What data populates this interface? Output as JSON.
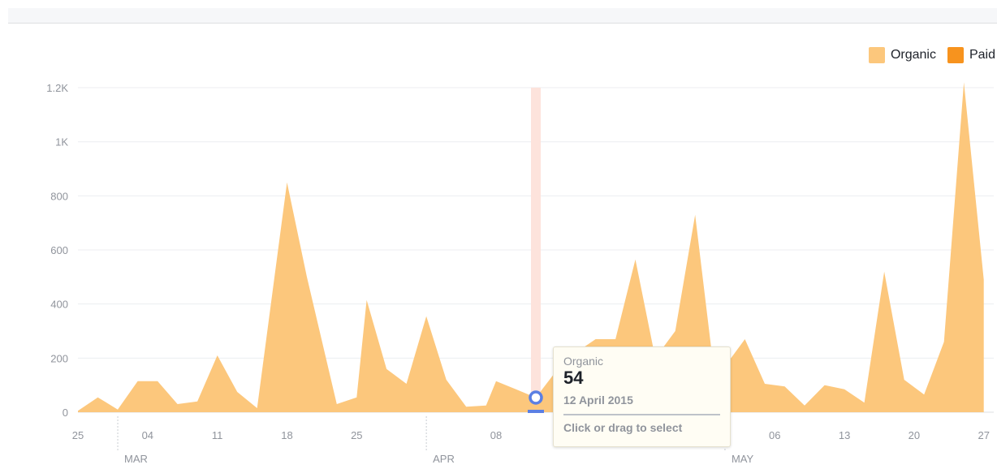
{
  "colors": {
    "organic": "#fcc77c",
    "paid": "#f7931e",
    "hover_band": "#fde3dc",
    "marker": "#5b7fe3",
    "grid": "#eceef1"
  },
  "legend": {
    "placement": "top-right",
    "items": [
      {
        "label": "Organic",
        "color": "#fcc77c"
      },
      {
        "label": "Paid",
        "color": "#f7931e"
      }
    ]
  },
  "chart_data": {
    "type": "area",
    "y_ticks": [
      {
        "value": 0,
        "label": "0"
      },
      {
        "value": 200,
        "label": "200"
      },
      {
        "value": 400,
        "label": "400"
      },
      {
        "value": 600,
        "label": "600"
      },
      {
        "value": 800,
        "label": "800"
      },
      {
        "value": 1000,
        "label": "1K"
      },
      {
        "value": 1200,
        "label": "1.2K"
      }
    ],
    "ylim": [
      0,
      1280
    ],
    "x_range": [
      "2015-02-25",
      "2015-05-28"
    ],
    "x_ticks": [
      {
        "date": "2015-02-25",
        "label": "25"
      },
      {
        "date": "2015-03-04",
        "label": "04"
      },
      {
        "date": "2015-03-11",
        "label": "11"
      },
      {
        "date": "2015-03-18",
        "label": "18"
      },
      {
        "date": "2015-03-25",
        "label": "25"
      },
      {
        "date": "2015-04-08",
        "label": "08"
      },
      {
        "date": "2015-05-06",
        "label": "06"
      },
      {
        "date": "2015-05-13",
        "label": "13"
      },
      {
        "date": "2015-05-20",
        "label": "20"
      },
      {
        "date": "2015-05-27",
        "label": "27"
      }
    ],
    "month_labels": [
      {
        "date": "2015-03-01",
        "label": "MAR"
      },
      {
        "date": "2015-04-01",
        "label": "APR"
      },
      {
        "date": "2015-05-01",
        "label": "MAY"
      }
    ],
    "grid": true,
    "series": [
      {
        "name": "Organic",
        "color": "#fcc77c",
        "points": [
          [
            "2015-02-25",
            5
          ],
          [
            "2015-02-27",
            55
          ],
          [
            "2015-03-01",
            10
          ],
          [
            "2015-03-03",
            115
          ],
          [
            "2015-03-05",
            115
          ],
          [
            "2015-03-07",
            30
          ],
          [
            "2015-03-09",
            40
          ],
          [
            "2015-03-11",
            210
          ],
          [
            "2015-03-13",
            75
          ],
          [
            "2015-03-15",
            15
          ],
          [
            "2015-03-18",
            850
          ],
          [
            "2015-03-20",
            500
          ],
          [
            "2015-03-23",
            30
          ],
          [
            "2015-03-25",
            55
          ],
          [
            "2015-03-26",
            415
          ],
          [
            "2015-03-28",
            160
          ],
          [
            "2015-03-30",
            105
          ],
          [
            "2015-04-01",
            355
          ],
          [
            "2015-04-03",
            120
          ],
          [
            "2015-04-05",
            20
          ],
          [
            "2015-04-07",
            25
          ],
          [
            "2015-04-08",
            115
          ],
          [
            "2015-04-10",
            85
          ],
          [
            "2015-04-12",
            54
          ],
          [
            "2015-04-14",
            150
          ],
          [
            "2015-04-16",
            220
          ],
          [
            "2015-04-18",
            270
          ],
          [
            "2015-04-20",
            270
          ],
          [
            "2015-04-22",
            565
          ],
          [
            "2015-04-24",
            200
          ],
          [
            "2015-04-26",
            300
          ],
          [
            "2015-04-28",
            730
          ],
          [
            "2015-04-30",
            120
          ],
          [
            "2015-05-03",
            270
          ],
          [
            "2015-05-05",
            105
          ],
          [
            "2015-05-07",
            95
          ],
          [
            "2015-05-09",
            25
          ],
          [
            "2015-05-11",
            100
          ],
          [
            "2015-05-13",
            85
          ],
          [
            "2015-05-15",
            35
          ],
          [
            "2015-05-17",
            520
          ],
          [
            "2015-05-19",
            120
          ],
          [
            "2015-05-21",
            65
          ],
          [
            "2015-05-23",
            260
          ],
          [
            "2015-05-25",
            1220
          ],
          [
            "2015-05-27",
            490
          ]
        ]
      },
      {
        "name": "Paid",
        "color": "#f7931e",
        "points": []
      }
    ],
    "hover": {
      "date": "2015-04-12",
      "value": 54
    }
  },
  "tooltip": {
    "series": "Organic",
    "value": "54",
    "date": "12 April 2015",
    "hint": "Click or drag to select"
  }
}
